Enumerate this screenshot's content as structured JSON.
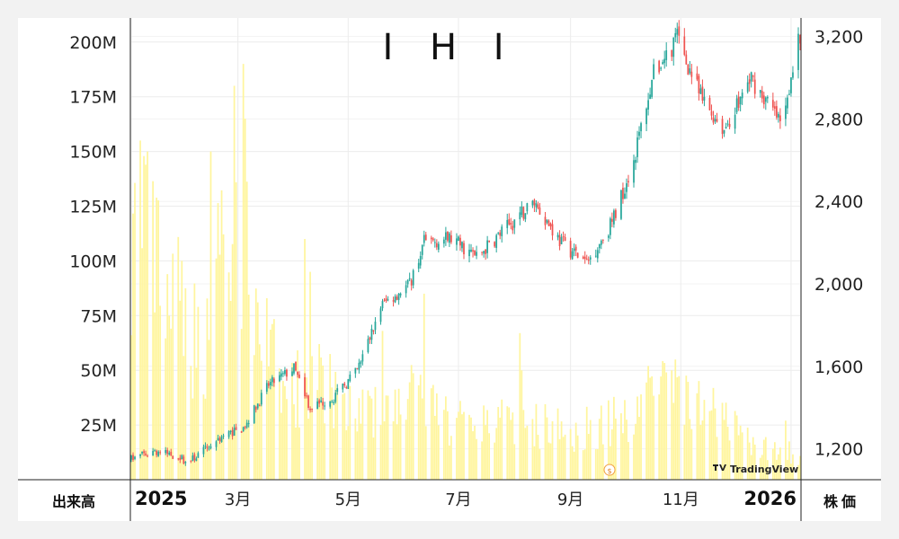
{
  "chart_data": {
    "type": "candlestick_with_volume",
    "title": "I H I",
    "left_axis": {
      "label": "出来高",
      "ticks": [
        "25M",
        "50M",
        "75M",
        "100M",
        "125M",
        "150M",
        "175M",
        "200M"
      ],
      "tick_values": [
        25,
        50,
        75,
        100,
        125,
        150,
        175,
        200
      ],
      "range": [
        0,
        211
      ],
      "unit": "M shares"
    },
    "right_axis": {
      "label": "株価",
      "ticks": [
        "1,200",
        "1,600",
        "2,000",
        "2,400",
        "2,800",
        "3,200"
      ],
      "tick_values": [
        1200,
        1600,
        2000,
        2400,
        2800,
        3200
      ],
      "range": [
        1050,
        3290
      ]
    },
    "x_axis": {
      "labels": [
        {
          "text": "2025",
          "date": "2025-01-01",
          "bold": true
        },
        {
          "text": "3月",
          "date": "2025-03-01",
          "bold": false
        },
        {
          "text": "5月",
          "date": "2025-05-01",
          "bold": false
        },
        {
          "text": "7月",
          "date": "2025-07-01",
          "bold": false
        },
        {
          "text": "9月",
          "date": "2025-09-01",
          "bold": false
        },
        {
          "text": "11月",
          "date": "2025-11-01",
          "bold": false
        },
        {
          "text": "2026",
          "date": "2026-01-01",
          "bold": true
        }
      ],
      "range": [
        "2025-01-01",
        "2026-01-06"
      ]
    },
    "price_anchors": [
      {
        "date": "2025-01-01",
        "close": 1150
      },
      {
        "date": "2025-01-14",
        "close": 1190
      },
      {
        "date": "2025-01-28",
        "close": 1160
      },
      {
        "date": "2025-02-01",
        "close": 1130
      },
      {
        "date": "2025-02-20",
        "close": 1260
      },
      {
        "date": "2025-03-04",
        "close": 1300
      },
      {
        "date": "2025-03-18",
        "close": 1510
      },
      {
        "date": "2025-04-01",
        "close": 1590
      },
      {
        "date": "2025-04-10",
        "close": 1400
      },
      {
        "date": "2025-04-23",
        "close": 1450
      },
      {
        "date": "2025-05-06",
        "close": 1580
      },
      {
        "date": "2025-05-20",
        "close": 1900
      },
      {
        "date": "2025-06-04",
        "close": 2000
      },
      {
        "date": "2025-06-12",
        "close": 2200
      },
      {
        "date": "2025-06-27",
        "close": 2220
      },
      {
        "date": "2025-07-11",
        "close": 2130
      },
      {
        "date": "2025-07-25",
        "close": 2250
      },
      {
        "date": "2025-08-12",
        "close": 2400
      },
      {
        "date": "2025-08-26",
        "close": 2210
      },
      {
        "date": "2025-09-10",
        "close": 2100
      },
      {
        "date": "2025-09-24",
        "close": 2300
      },
      {
        "date": "2025-10-06",
        "close": 2600
      },
      {
        "date": "2025-10-16",
        "close": 3000
      },
      {
        "date": "2025-10-30",
        "close": 3200
      },
      {
        "date": "2025-11-12",
        "close": 2900
      },
      {
        "date": "2025-11-25",
        "close": 2750
      },
      {
        "date": "2025-12-10",
        "close": 3000
      },
      {
        "date": "2025-12-26",
        "close": 2780
      },
      {
        "date": "2026-01-06",
        "close": 3200
      }
    ],
    "volume_anchors": [
      {
        "date": "2025-01-01",
        "value": 120
      },
      {
        "date": "2025-01-20",
        "value": 85
      },
      {
        "date": "2025-02-10",
        "value": 60
      },
      {
        "date": "2025-02-26",
        "value": 115
      },
      {
        "date": "2025-03-04",
        "value": 100
      },
      {
        "date": "2025-03-25",
        "value": 40
      },
      {
        "date": "2025-04-15",
        "value": 45
      },
      {
        "date": "2025-05-06",
        "value": 30
      },
      {
        "date": "2025-06-01",
        "value": 38
      },
      {
        "date": "2025-07-01",
        "value": 25
      },
      {
        "date": "2025-08-01",
        "value": 28
      },
      {
        "date": "2025-09-01",
        "value": 22
      },
      {
        "date": "2025-10-01",
        "value": 28
      },
      {
        "date": "2025-10-20",
        "value": 42
      },
      {
        "date": "2025-11-10",
        "value": 38
      },
      {
        "date": "2025-12-10",
        "value": 15
      },
      {
        "date": "2026-01-06",
        "value": 12
      }
    ],
    "volume_spikes": [
      {
        "date": "2025-01-06",
        "value": 155
      },
      {
        "date": "2025-01-10",
        "value": 150
      },
      {
        "date": "2025-02-14",
        "value": 150
      },
      {
        "date": "2025-02-27",
        "value": 180
      },
      {
        "date": "2025-03-04",
        "value": 190
      },
      {
        "date": "2025-03-05",
        "value": 165
      },
      {
        "date": "2025-04-07",
        "value": 110
      },
      {
        "date": "2025-04-10",
        "value": 95
      },
      {
        "date": "2025-05-20",
        "value": 68
      },
      {
        "date": "2025-06-12",
        "value": 85
      },
      {
        "date": "2025-08-04",
        "value": 67
      },
      {
        "date": "2025-08-05",
        "value": 50
      },
      {
        "date": "2025-10-14",
        "value": 52
      },
      {
        "date": "2025-10-27",
        "value": 50
      },
      {
        "date": "2025-12-29",
        "value": 27
      }
    ],
    "up_color": "#26a69a",
    "down_color": "#ef5350",
    "volume_color": "#fff59d",
    "grid": true
  },
  "watermark": {
    "text": "TradingView"
  }
}
